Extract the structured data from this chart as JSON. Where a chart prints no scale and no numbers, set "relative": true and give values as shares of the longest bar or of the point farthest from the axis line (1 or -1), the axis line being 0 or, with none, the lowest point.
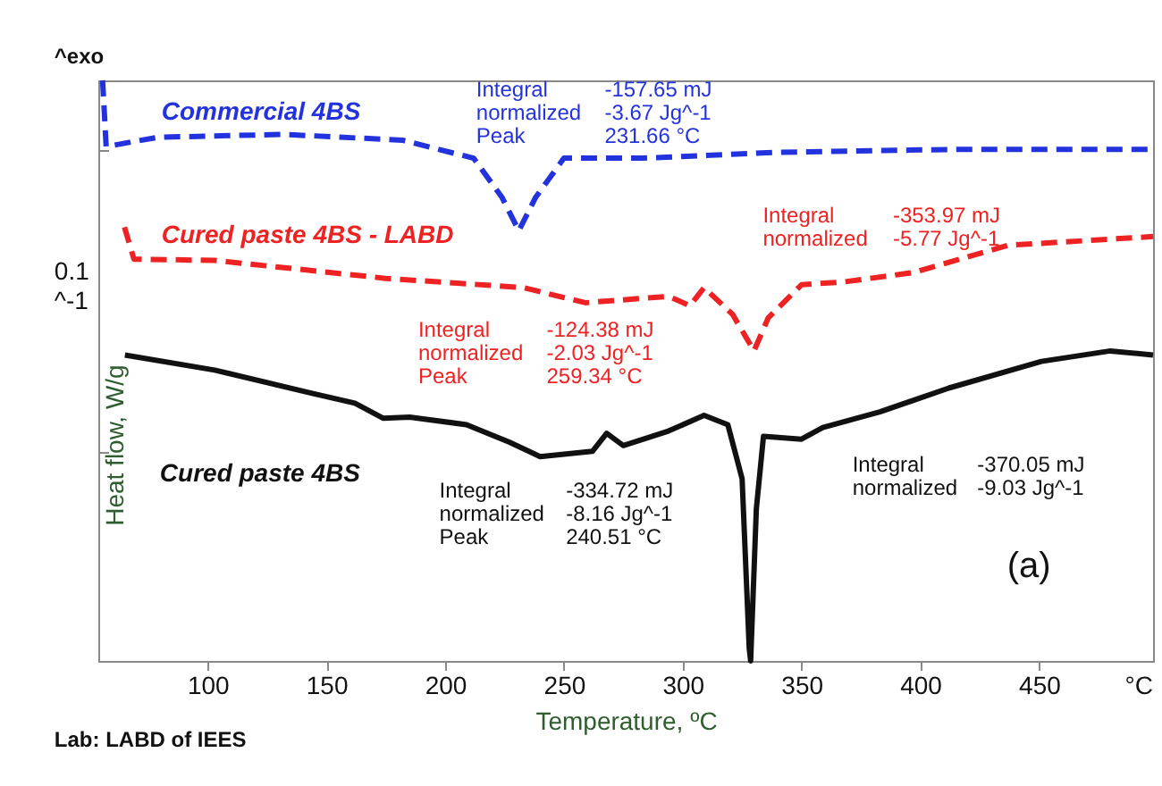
{
  "chart_data": {
    "type": "line",
    "relative": true,
    "xlabel": "Temperature, ºC",
    "ylabel": "Heat flow, W/g",
    "xlim": [
      54,
      498
    ],
    "xticks": [
      100,
      150,
      200,
      250,
      300,
      350,
      400,
      450
    ],
    "grid": false,
    "annotations": [
      "^exo",
      "Integral\nnormalized\nPeak",
      "-157.65 mJ\n-3.67 Jg^-1\n231.66 °C",
      "Integral\nnormalized",
      "-353.97 mJ\n-5.77 Jg^-1",
      "Integral\nnormalized\nPeak",
      "-124.38 mJ\n-2.03 Jg^-1\n259.34 °C",
      "Integral\nnormalized",
      "-370.05 mJ\n-9.03 Jg^-1",
      "Integral\nnormalized\nPeak",
      "-334.72 mJ\n-8.16 Jg^-1\n240.51 °C",
      "0.1",
      "^-1",
      "(a)",
      "°C",
      "Lab: LABD of IEES"
    ],
    "series": [
      {
        "name": "Commercial 4BS",
        "color": "#2233dd",
        "line_style": "dashed",
        "x": [
          55.8,
          57.3,
          79,
          132,
          182,
          212,
          224,
          231,
          238,
          250,
          283,
          339,
          412,
          498
        ],
        "values": [
          1.0,
          0.886,
          0.902,
          0.907,
          0.897,
          0.866,
          0.798,
          0.741,
          0.798,
          0.866,
          0.866,
          0.876,
          0.881,
          0.881
        ]
      },
      {
        "name": "Cured paste 4BS - LABD",
        "color": "#ee2222",
        "line_style": "dashed",
        "x": [
          65,
          69,
          103,
          175,
          233,
          259,
          294,
          303,
          309,
          321,
          330,
          336,
          350,
          368,
          397,
          437,
          498
        ],
        "values": [
          0.747,
          0.692,
          0.69,
          0.659,
          0.643,
          0.617,
          0.628,
          0.612,
          0.643,
          0.597,
          0.534,
          0.591,
          0.648,
          0.653,
          0.669,
          0.716,
          0.731
        ]
      },
      {
        "name": "Cured paste 4BS",
        "color": "#111111",
        "line_style": "solid",
        "x": [
          65.2,
          103,
          144,
          162,
          174,
          185,
          209,
          227,
          240,
          262,
          268,
          275,
          294,
          309,
          319,
          325,
          328,
          328.6,
          331,
          334,
          350,
          359,
          383,
          412,
          451,
          480,
          498
        ],
        "values": [
          0.527,
          0.501,
          0.461,
          0.444,
          0.418,
          0.42,
          0.407,
          0.377,
          0.352,
          0.361,
          0.392,
          0.371,
          0.396,
          0.423,
          0.407,
          0.314,
          0.022,
          0.0,
          0.262,
          0.387,
          0.382,
          0.402,
          0.429,
          0.47,
          0.516,
          0.534,
          0.527
        ]
      }
    ]
  }
}
